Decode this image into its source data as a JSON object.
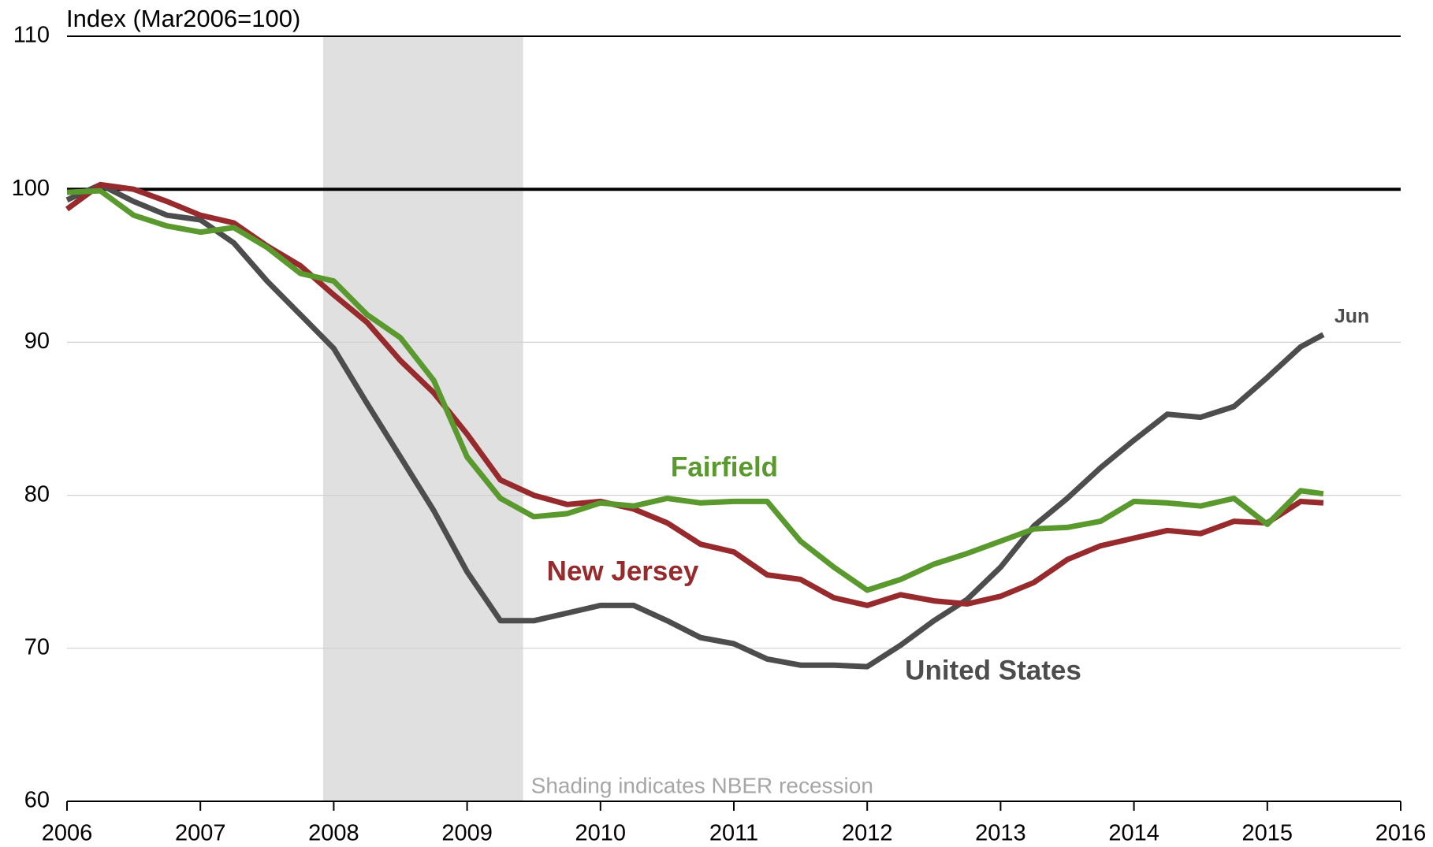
{
  "chart_data": {
    "type": "line",
    "title": "Index (Mar2006=100)",
    "x": [
      2006.0,
      2006.25,
      2006.5,
      2006.75,
      2007.0,
      2007.25,
      2007.5,
      2007.75,
      2008.0,
      2008.25,
      2008.5,
      2008.75,
      2009.0,
      2009.25,
      2009.5,
      2009.75,
      2010.0,
      2010.25,
      2010.5,
      2010.75,
      2011.0,
      2011.25,
      2011.5,
      2011.75,
      2012.0,
      2012.25,
      2012.5,
      2012.75,
      2013.0,
      2013.25,
      2013.5,
      2013.75,
      2014.0,
      2014.25,
      2014.5,
      2014.75,
      2015.0,
      2015.25,
      2015.42
    ],
    "series": [
      {
        "name": "United States",
        "color": "#4d4d4d",
        "values": [
          99.3,
          100.3,
          99.2,
          98.3,
          98.0,
          96.5,
          94.0,
          91.8,
          89.6,
          86,
          82.5,
          79,
          75,
          71.8,
          71.8,
          72.3,
          72.8,
          72.8,
          71.8,
          70.7,
          70.3,
          69.3,
          68.9,
          68.9,
          68.8,
          70.2,
          71.8,
          73.2,
          75.3,
          78.0,
          79.8,
          81.8,
          83.6,
          85.3,
          85.1,
          85.8,
          87.7,
          89.7,
          90.5
        ]
      },
      {
        "name": "Fairfield",
        "color": "#5a992e",
        "values": [
          99.8,
          99.9,
          98.3,
          97.6,
          97.2,
          97.5,
          96.2,
          94.5,
          94.0,
          91.8,
          90.3,
          87.5,
          82.5,
          79.8,
          78.6,
          78.8,
          79.5,
          79.3,
          79.8,
          79.5,
          79.6,
          79.6,
          77.0,
          75.3,
          73.8,
          74.5,
          75.5,
          76.2,
          77.0,
          77.8,
          77.9,
          78.3,
          79.6,
          79.5,
          79.3,
          79.8,
          78.1,
          80.3,
          80.1
        ]
      },
      {
        "name": "New Jersey",
        "color": "#962a2c",
        "values": [
          98.7,
          100.3,
          100.0,
          99.2,
          98.3,
          97.8,
          96.3,
          95.0,
          93.1,
          91.3,
          88.8,
          86.7,
          84.0,
          81.0,
          80.0,
          79.4,
          79.6,
          79.1,
          78.2,
          76.8,
          76.3,
          74.8,
          74.5,
          73.3,
          72.8,
          73.5,
          73.1,
          72.9,
          73.4,
          74.3,
          75.8,
          76.7,
          77.2,
          77.7,
          77.5,
          78.3,
          78.2,
          79.6,
          79.5
        ]
      }
    ],
    "end_label": "Jun",
    "recession": [
      2007.92,
      2009.42
    ],
    "recession_note": "Shading indicates NBER recession",
    "reference_line": 100,
    "xlim": [
      2006,
      2016
    ],
    "xticks": [
      2006,
      2007,
      2008,
      2009,
      2010,
      2011,
      2012,
      2013,
      2014,
      2015,
      2016
    ],
    "ylim": [
      60,
      110
    ],
    "yticks": [
      60,
      70,
      80,
      90,
      100,
      110
    ],
    "grid": true
  }
}
